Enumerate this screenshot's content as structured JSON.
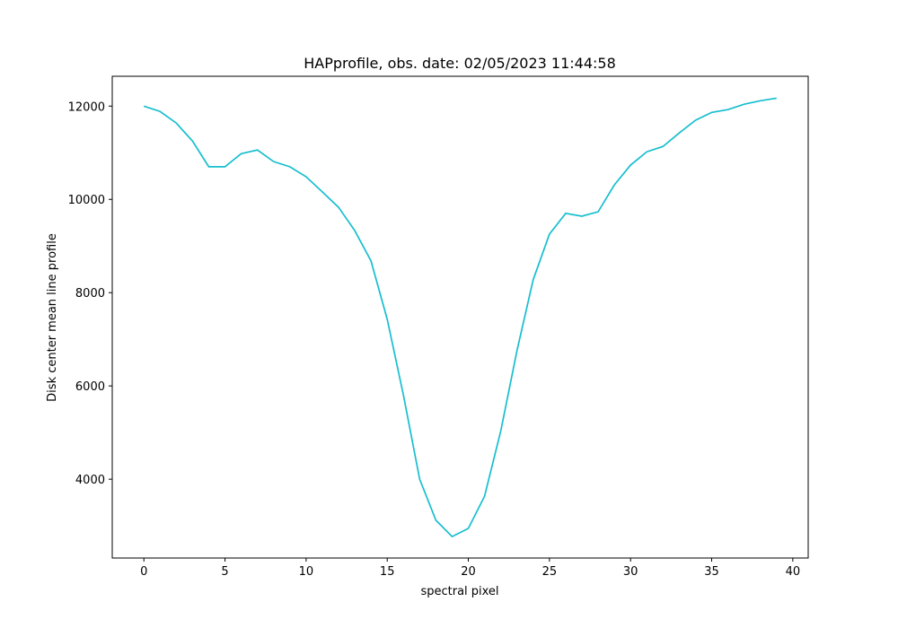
{
  "chart_data": {
    "type": "line",
    "title": "HAPprofile, obs. date: 02/05/2023 11:44:58",
    "x_label": "spectral pixel",
    "y_label": "Disk center mean line profile",
    "x": [
      0,
      1,
      2,
      3,
      4,
      5,
      6,
      7,
      8,
      9,
      10,
      11,
      12,
      13,
      14,
      15,
      16,
      17,
      18,
      19,
      20,
      21,
      22,
      23,
      24,
      25,
      26,
      27,
      28,
      29,
      30,
      31,
      32,
      33,
      34,
      35,
      36,
      37,
      38,
      39
    ],
    "series": [
      {
        "color": "#17becf",
        "values": [
          12000,
          11885,
          11635,
          11250,
          10700,
          10700,
          10980,
          11060,
          10810,
          10700,
          10485,
          10160,
          9830,
          9330,
          8680,
          7430,
          5800,
          4000,
          3120,
          2770,
          2945,
          3635,
          5035,
          6760,
          8280,
          9255,
          9700,
          9640,
          9735,
          10310,
          10735,
          11020,
          11135,
          11425,
          11695,
          11865,
          11925,
          12040,
          12115,
          12170
        ]
      }
    ],
    "xlim": [
      -1.95,
      40.95
    ],
    "xticks": [
      0,
      5,
      10,
      15,
      20,
      25,
      30,
      35,
      40
    ],
    "ylim": [
      2310,
      12640
    ],
    "yticks": [
      4000,
      6000,
      8000,
      10000,
      12000
    ],
    "grid": false
  }
}
